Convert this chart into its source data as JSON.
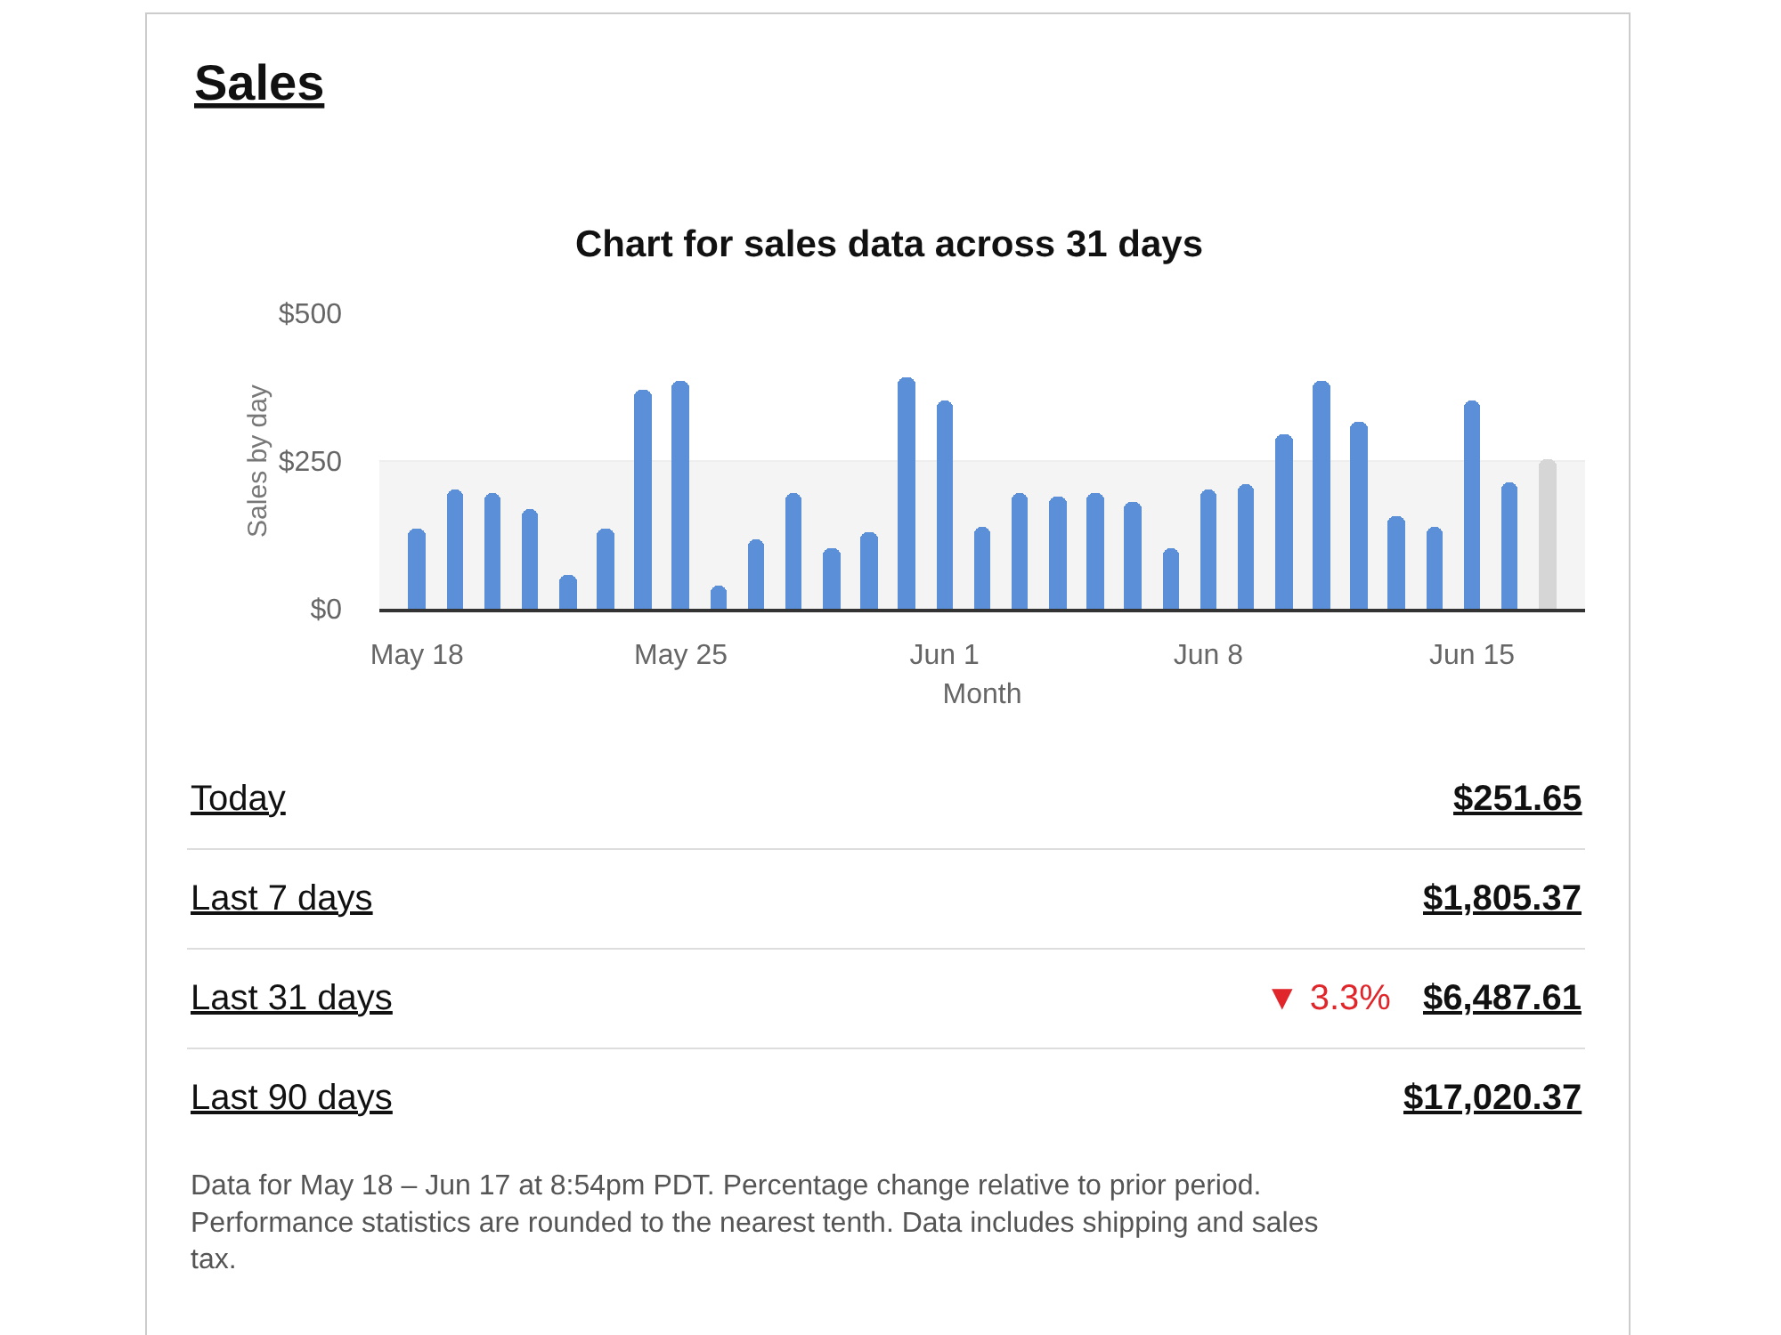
{
  "chart_data": {
    "type": "bar",
    "title": "Sales",
    "subtitle": "Chart for sales data across 31 days",
    "xlabel": "Month",
    "ylabel": "Sales by day",
    "x": [
      "--05-18",
      "--05-19",
      "--05-20",
      "--05-21",
      "--05-22",
      "--05-23",
      "--05-24",
      "--05-25",
      "--05-26",
      "--05-27",
      "--05-28",
      "--05-29",
      "--05-30",
      "--05-31",
      "--06-01",
      "--06-02",
      "--06-03",
      "--06-04",
      "--06-05",
      "--06-06",
      "--06-07",
      "--06-08",
      "--06-09",
      "--06-10",
      "--06-11",
      "--06-12",
      "--06-13",
      "--06-14",
      "--06-15",
      "--06-16",
      "--06-17"
    ],
    "values": [
      135,
      203,
      195,
      168,
      57,
      135,
      370,
      385,
      38,
      117,
      195,
      102,
      130,
      393,
      351,
      139,
      195,
      191,
      195,
      181,
      102,
      203,
      212,
      296,
      385,
      315,
      158,
      139,
      352,
      213,
      252
    ],
    "colors": [
      "#5b8fd8",
      "#5b8fd8",
      "#5b8fd8",
      "#5b8fd8",
      "#5b8fd8",
      "#5b8fd8",
      "#5b8fd8",
      "#5b8fd8",
      "#5b8fd8",
      "#5b8fd8",
      "#5b8fd8",
      "#5b8fd8",
      "#5b8fd8",
      "#5b8fd8",
      "#5b8fd8",
      "#5b8fd8",
      "#5b8fd8",
      "#5b8fd8",
      "#5b8fd8",
      "#5b8fd8",
      "#5b8fd8",
      "#5b8fd8",
      "#5b8fd8",
      "#5b8fd8",
      "#5b8fd8",
      "#5b8fd8",
      "#5b8fd8",
      "#5b8fd8",
      "#5b8fd8",
      "#5b8fd8",
      "#d6d6d6"
    ],
    "xlim": [
      "--05-17",
      "--06-18"
    ],
    "xticks": [
      {
        "value": "--05-18",
        "label": "May 18"
      },
      {
        "value": "--05-25",
        "label": "May 25"
      },
      {
        "value": "--06-01",
        "label": "Jun 1"
      },
      {
        "value": "--06-08",
        "label": "Jun 8"
      },
      {
        "value": "--06-15",
        "label": "Jun 15"
      }
    ],
    "ylim": [
      0,
      500
    ],
    "yticks": [
      {
        "value": 0,
        "label": "$0"
      },
      {
        "value": 250,
        "label": "$250"
      },
      {
        "value": 500,
        "label": "$500"
      }
    ],
    "grid": "y",
    "bands": [
      {
        "axis": "y",
        "from": 0,
        "to": 250,
        "color": "#f4f4f4"
      }
    ],
    "annotations": [
      "Today",
      "$251.65",
      "Last 7 days",
      "$1,805.37",
      "Last 31 days",
      "▼ 3.3%",
      "$6,487.61",
      "Last 90 days",
      "$17,020.37",
      "Data for May 18 – Jun 17 at 8:54pm PDT. Percentage change relative to prior period. Performance statistics are rounded to the nearest tenth. Data includes shipping and sales tax."
    ]
  }
}
